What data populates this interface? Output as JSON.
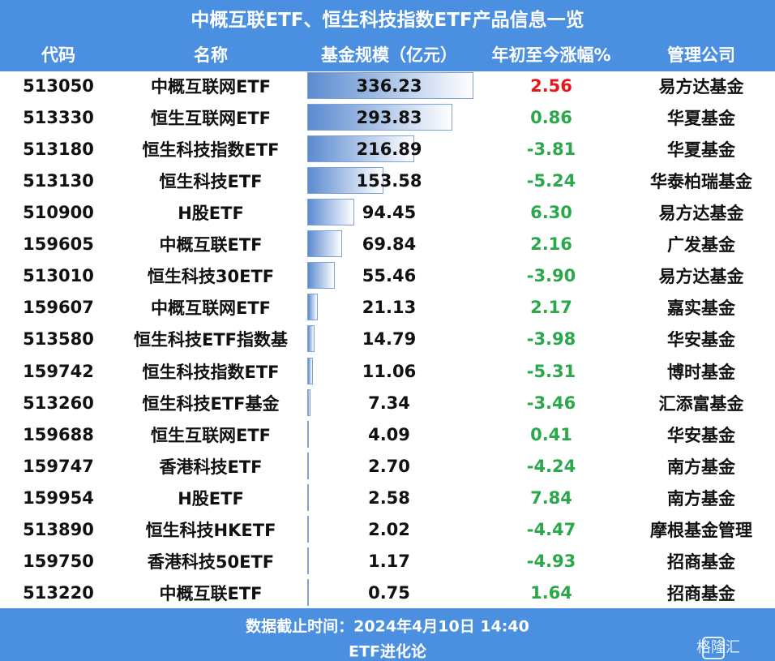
{
  "header": {
    "title": "中概互联ETF、恒生科技指数ETF产品信息一览"
  },
  "table": {
    "columns": [
      "代码",
      "名称",
      "基金规模（亿元）",
      "年初至今涨幅%",
      "管理公司"
    ],
    "rows": [
      [
        "513050",
        "中概互联网ETF",
        "336.23",
        "2.56",
        "易方达基金"
      ],
      [
        "513330",
        "恒生互联网ETF",
        "293.83",
        "0.86",
        "华夏基金"
      ],
      [
        "513180",
        "恒生科技指数ETF",
        "216.89",
        "-3.81",
        "华夏基金"
      ],
      [
        "513130",
        "恒生科技ETF",
        "153.58",
        "-5.24",
        "华泰柏瑞基金"
      ],
      [
        "510900",
        "H股ETF",
        "94.45",
        "6.30",
        "易方达基金"
      ],
      [
        "159605",
        "中概互联ETF",
        "69.84",
        "2.16",
        "广发基金"
      ],
      [
        "513010",
        "恒生科技30ETF",
        "55.46",
        "-3.90",
        "易方达基金"
      ],
      [
        "159607",
        "中概互联网ETF",
        "21.13",
        "2.17",
        "嘉实基金"
      ],
      [
        "513580",
        "恒生科技ETF指数基",
        "14.79",
        "-3.98",
        "华安基金"
      ],
      [
        "159742",
        "恒生科技指数ETF",
        "11.06",
        "-5.31",
        "博时基金"
      ],
      [
        "513260",
        "恒生科技ETF基金",
        "7.34",
        "-3.46",
        "汇添富基金"
      ],
      [
        "159688",
        "恒生互联网ETF",
        "4.09",
        "0.41",
        "华安基金"
      ],
      [
        "159747",
        "香港科技ETF",
        "2.70",
        "-4.24",
        "南方基金"
      ],
      [
        "159954",
        "H股ETF",
        "2.58",
        "7.84",
        "南方基金"
      ],
      [
        "513890",
        "恒生科技HKETF",
        "2.02",
        "-4.47",
        "摩根基金管理"
      ],
      [
        "159750",
        "香港科技50ETF",
        "1.17",
        "-4.93",
        "招商基金"
      ],
      [
        "513220",
        "中概互联ETF",
        "0.75",
        "1.64",
        "招商基金"
      ]
    ],
    "ytd_color": "#2aa84a",
    "highlight": {
      "row": 0,
      "color": "#e8161b"
    },
    "bar_color": "#5b8bd0"
  },
  "footer": {
    "lines": [
      "数据截止时间：2024年4月10日 14:40",
      "ETF进化论"
    ],
    "watermark": "格隆汇"
  }
}
